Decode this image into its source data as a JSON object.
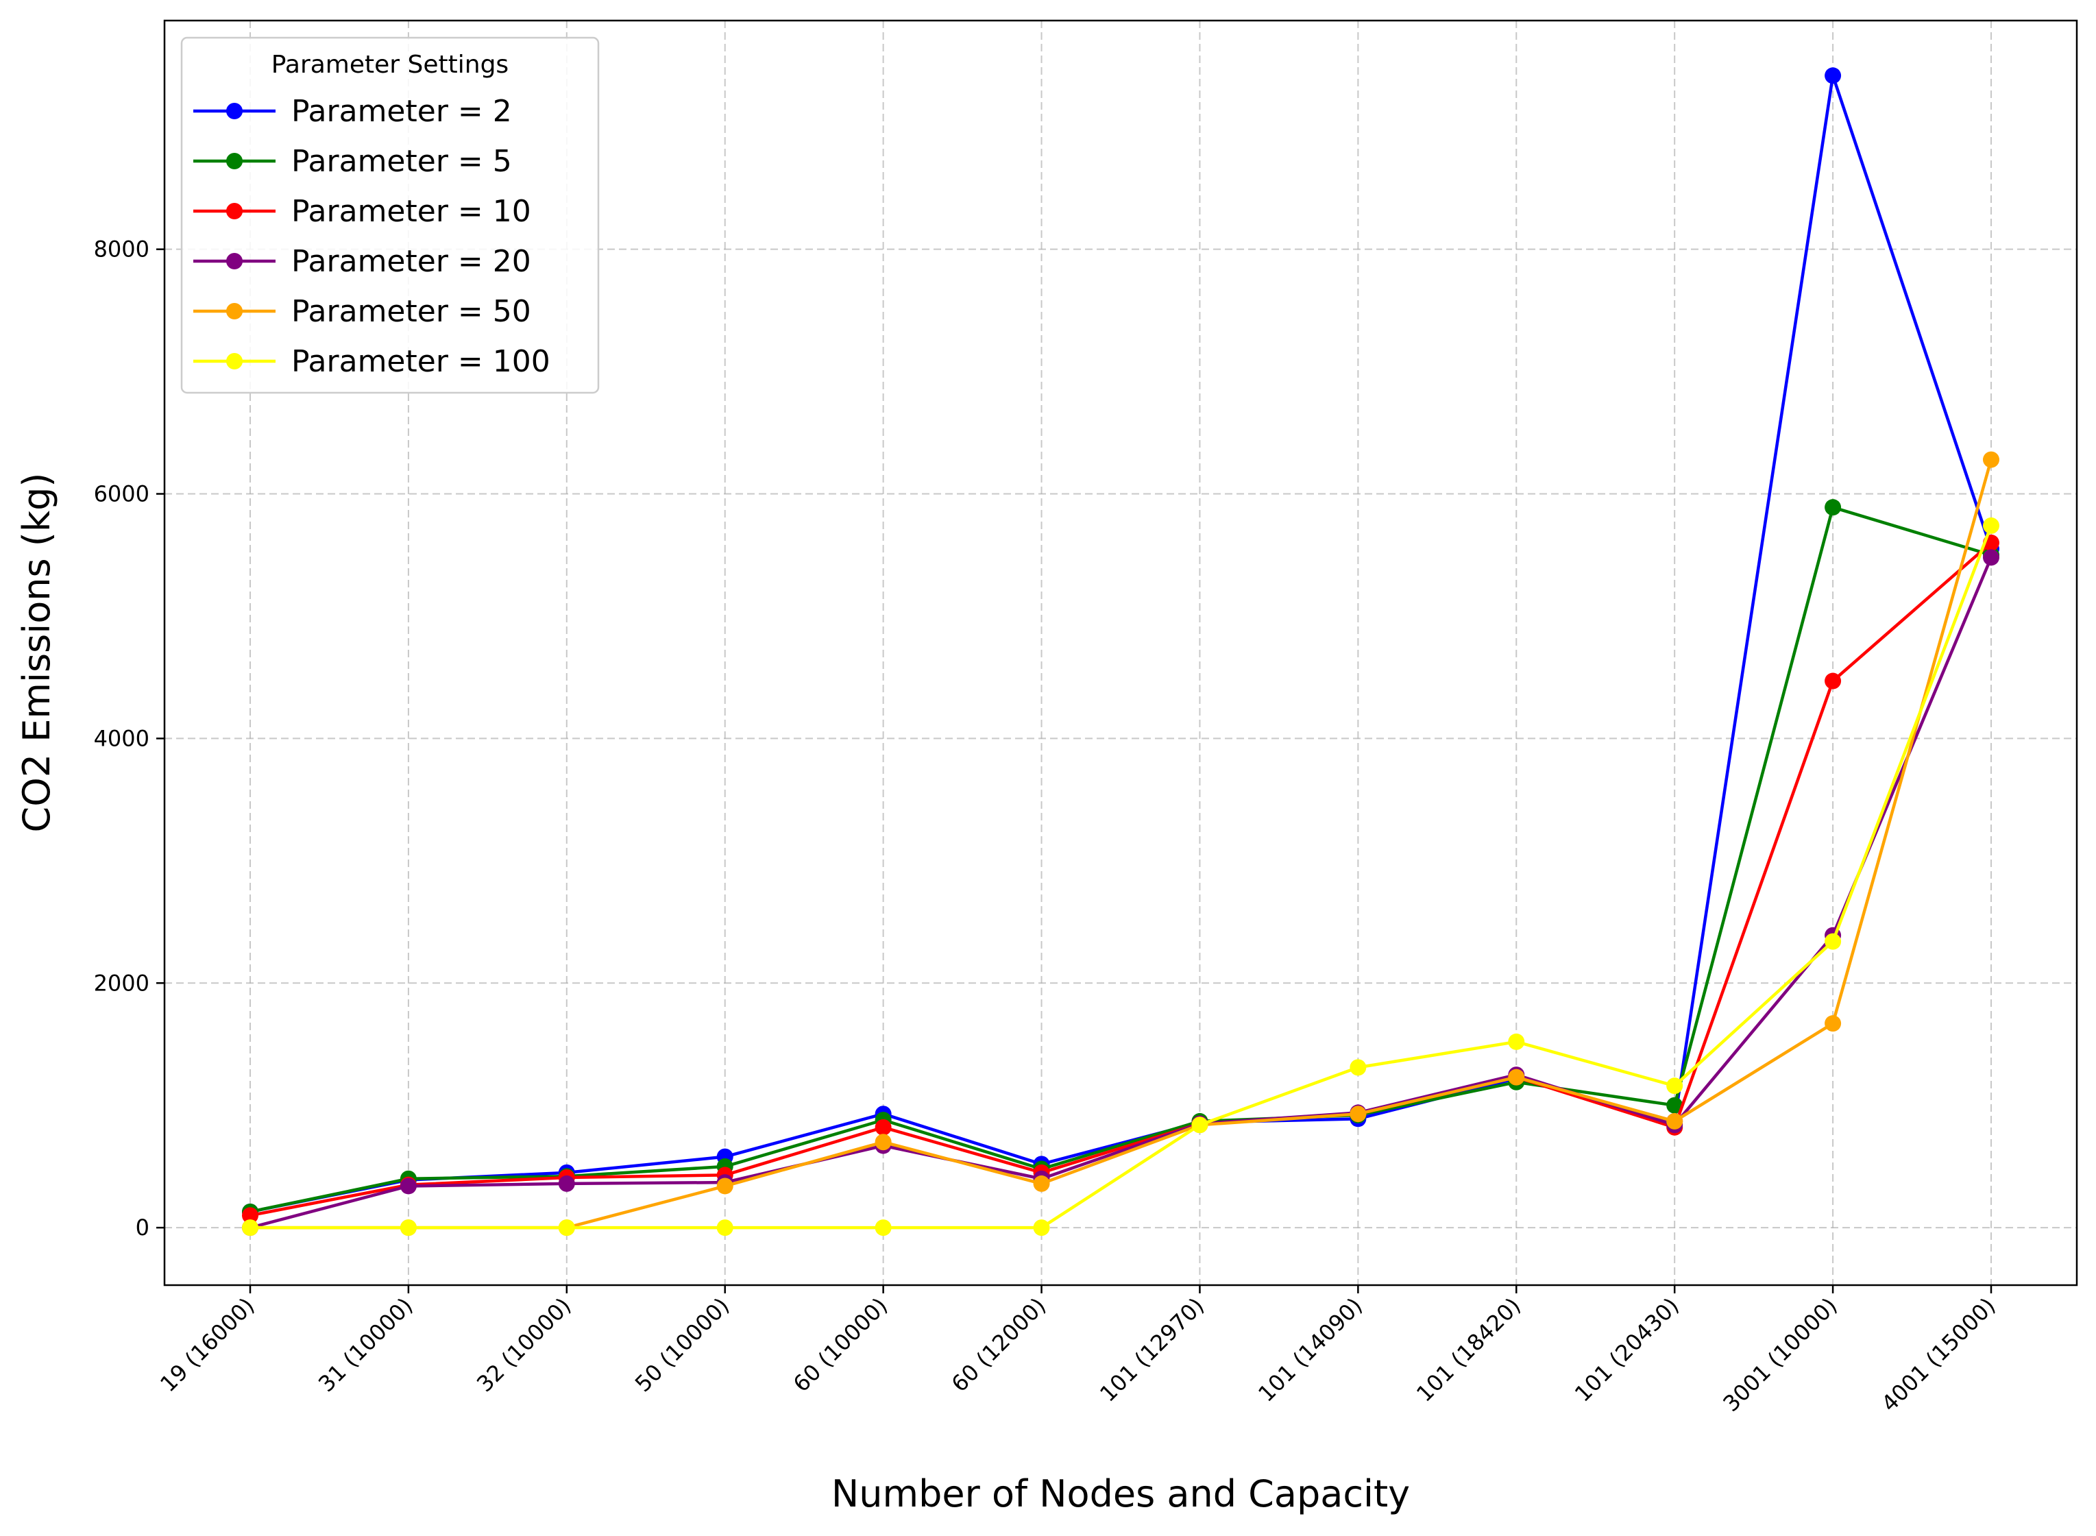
{
  "chart_data": {
    "type": "line",
    "title": "",
    "xlabel": "Number of Nodes and Capacity",
    "ylabel": "CO2 Emissions (kg)",
    "categories": [
      "19 (16000)",
      "31 (10000)",
      "32 (10000)",
      "50 (10000)",
      "60 (10000)",
      "60 (12000)",
      "101 (12970)",
      "101 (14090)",
      "101 (18420)",
      "101 (20430)",
      "3001 (10000)",
      "4001 (15000)"
    ],
    "ylim": [
      -470,
      9870
    ],
    "yticks": [
      0,
      2000,
      4000,
      6000,
      8000
    ],
    "grid": true,
    "legend": {
      "title": "Parameter Settings",
      "placement": "top-left"
    },
    "series": [
      {
        "name": "Parameter = 2",
        "color": "#0000ff",
        "values": [
          130,
          390,
          450,
          580,
          930,
          520,
          860,
          890,
          1220,
          870,
          9420,
          5550
        ]
      },
      {
        "name": "Parameter = 5",
        "color": "#008000",
        "values": [
          130,
          400,
          420,
          500,
          880,
          480,
          870,
          920,
          1190,
          1000,
          5890,
          5500
        ]
      },
      {
        "name": "Parameter = 10",
        "color": "#ff0000",
        "values": [
          100,
          350,
          410,
          430,
          820,
          450,
          850,
          930,
          1230,
          820,
          4470,
          5600
        ]
      },
      {
        "name": "Parameter = 20",
        "color": "#800080",
        "values": [
          0,
          340,
          360,
          370,
          670,
          400,
          850,
          940,
          1250,
          840,
          2390,
          5480
        ]
      },
      {
        "name": "Parameter = 50",
        "color": "#ffa500",
        "values": [
          0,
          0,
          0,
          340,
          700,
          360,
          840,
          930,
          1230,
          870,
          1670,
          6280
        ]
      },
      {
        "name": "Parameter = 100",
        "color": "#ffff00",
        "values": [
          0,
          0,
          0,
          0,
          0,
          0,
          840,
          1310,
          1520,
          1160,
          2340,
          5740
        ]
      }
    ]
  }
}
